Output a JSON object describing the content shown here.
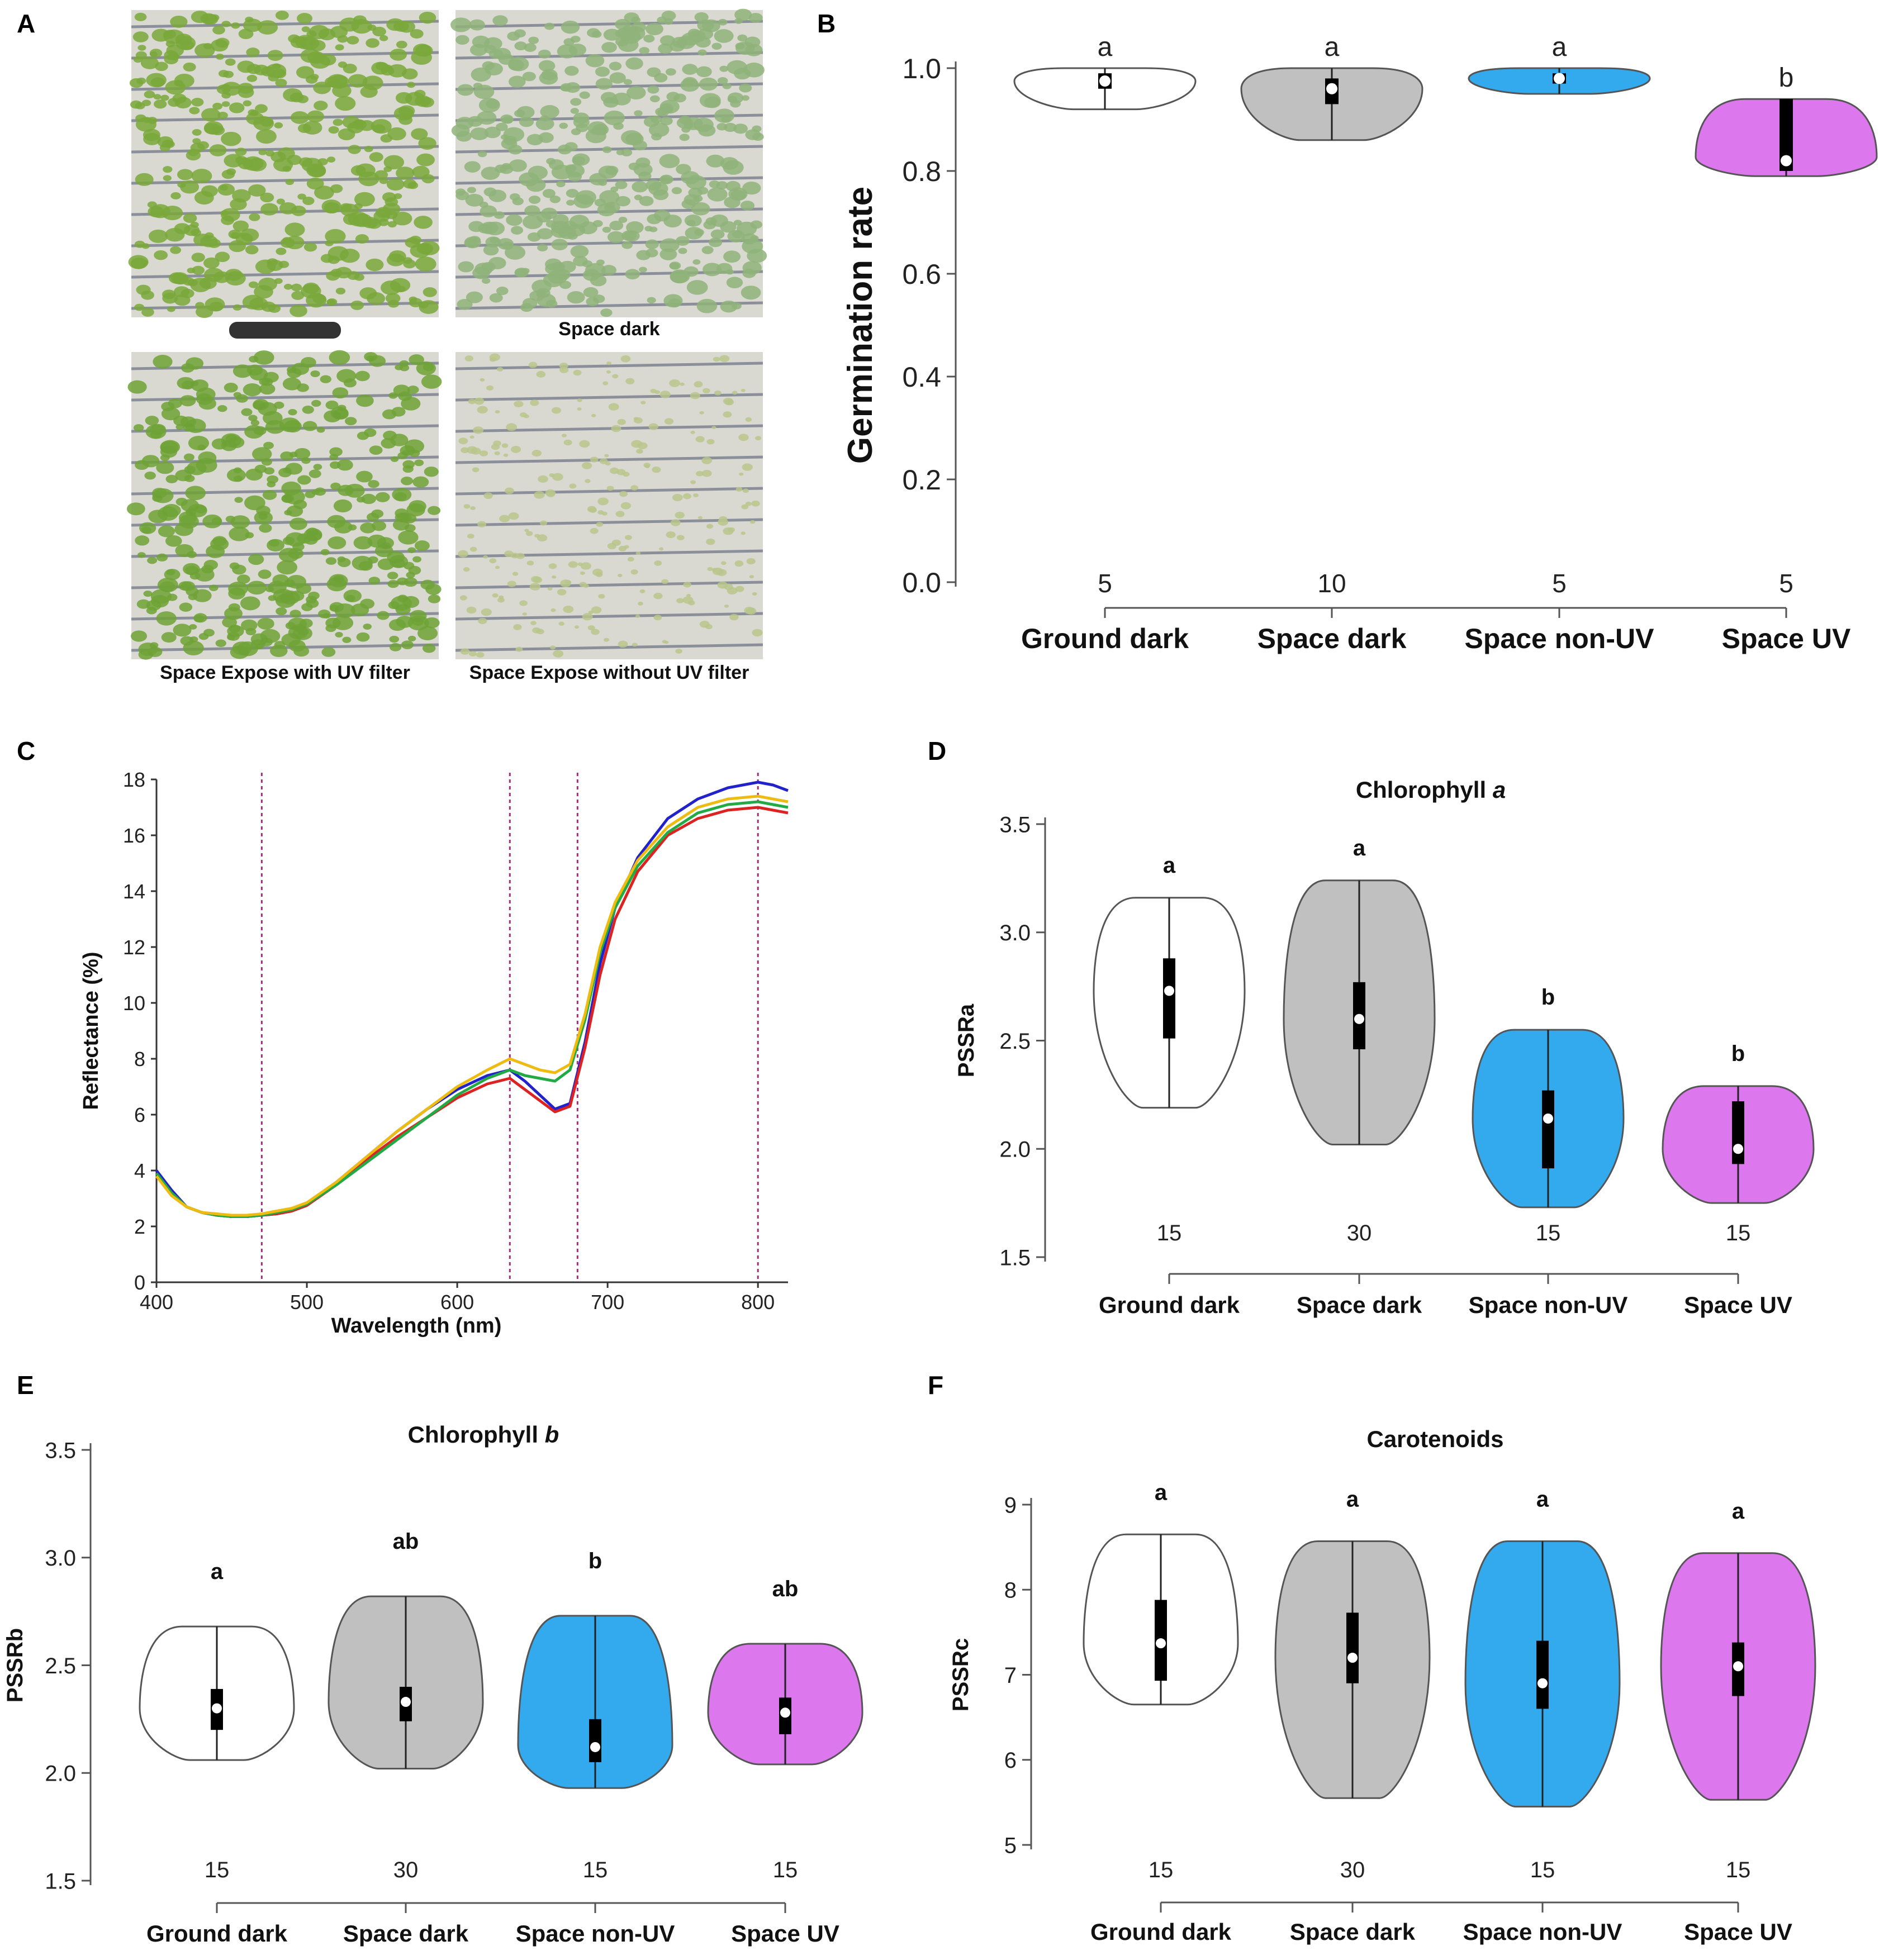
{
  "panels": {
    "a": {
      "label": "A",
      "photos": [
        {
          "caption": "",
          "redacted": true,
          "color": "#7aa83a"
        },
        {
          "caption": "Space dark",
          "color": "#8fb37a"
        },
        {
          "caption": "Space Expose with UV filter",
          "color": "#6fa236"
        },
        {
          "caption": "Space Expose without UV filter",
          "color": "#b9c68c"
        }
      ]
    },
    "b": {
      "label": "B"
    },
    "c": {
      "label": "C"
    },
    "d": {
      "label": "D"
    },
    "e": {
      "label": "E"
    },
    "f": {
      "label": "F"
    }
  },
  "colors": {
    "ground_dark": "#ffffff",
    "space_dark": "#c0c0c0",
    "space_nonuv": "#33aaee",
    "space_uv": "#dd77ee",
    "vline": "#a0307a"
  },
  "chart_data": [
    {
      "panel": "B",
      "type": "violin",
      "title": "",
      "ylabel": "Germination rate",
      "ylim": [
        0,
        1.0
      ],
      "yticks": [
        "0.0",
        "0.2",
        "0.4",
        "0.6",
        "0.8",
        "1.0"
      ],
      "categories": [
        "Ground dark",
        "Space dark",
        "Space non-UV",
        "Space UV"
      ],
      "n": [
        "5",
        "10",
        "5",
        "5"
      ],
      "letters": [
        "a",
        "a",
        "a",
        "b"
      ],
      "groups": [
        {
          "min": 0.92,
          "max": 1.0,
          "q1": 0.96,
          "q3": 0.99,
          "median": 0.975
        },
        {
          "min": 0.86,
          "max": 1.0,
          "q1": 0.93,
          "q3": 0.98,
          "median": 0.96
        },
        {
          "min": 0.95,
          "max": 1.0,
          "q1": 0.97,
          "q3": 0.99,
          "median": 0.98
        },
        {
          "min": 0.79,
          "max": 0.94,
          "q1": 0.8,
          "q3": 0.94,
          "median": 0.82
        }
      ]
    },
    {
      "panel": "C",
      "type": "line",
      "ylabel": "Reflectance (%)",
      "xlabel": "Wavelength (nm)",
      "xlim": [
        400,
        820
      ],
      "ylim": [
        0,
        18
      ],
      "xticks": [
        "400",
        "500",
        "600",
        "700",
        "800"
      ],
      "yticks": [
        "0",
        "2",
        "4",
        "6",
        "8",
        "10",
        "12",
        "14",
        "16",
        "18"
      ],
      "vlines": [
        470,
        635,
        680,
        800
      ],
      "series": [
        {
          "color": "#2222cc",
          "x": [
            400,
            410,
            420,
            430,
            440,
            450,
            460,
            470,
            480,
            490,
            500,
            520,
            540,
            560,
            580,
            600,
            620,
            635,
            645,
            655,
            665,
            675,
            685,
            695,
            705,
            720,
            740,
            760,
            780,
            800,
            810,
            820
          ],
          "y": [
            4.0,
            3.3,
            2.7,
            2.5,
            2.4,
            2.35,
            2.35,
            2.4,
            2.45,
            2.55,
            2.8,
            3.6,
            4.5,
            5.4,
            6.2,
            6.9,
            7.4,
            7.6,
            7.2,
            6.7,
            6.2,
            6.4,
            8.6,
            11.4,
            13.4,
            15.2,
            16.6,
            17.3,
            17.7,
            17.9,
            17.8,
            17.6
          ]
        },
        {
          "color": "#dd2222",
          "x": [
            400,
            410,
            420,
            430,
            440,
            450,
            460,
            470,
            480,
            490,
            500,
            520,
            540,
            560,
            580,
            600,
            620,
            635,
            645,
            655,
            665,
            675,
            685,
            695,
            705,
            720,
            740,
            760,
            780,
            800,
            810,
            820
          ],
          "y": [
            3.9,
            3.2,
            2.7,
            2.5,
            2.4,
            2.35,
            2.35,
            2.4,
            2.45,
            2.55,
            2.75,
            3.5,
            4.4,
            5.2,
            5.9,
            6.6,
            7.1,
            7.3,
            6.9,
            6.5,
            6.1,
            6.3,
            8.4,
            11.0,
            13.0,
            14.7,
            16.0,
            16.6,
            16.9,
            17.0,
            16.9,
            16.8
          ]
        },
        {
          "color": "#22aa44",
          "x": [
            400,
            410,
            420,
            430,
            440,
            450,
            460,
            470,
            480,
            490,
            500,
            520,
            540,
            560,
            580,
            600,
            620,
            635,
            645,
            655,
            665,
            675,
            685,
            695,
            705,
            720,
            740,
            760,
            780,
            800,
            810,
            820
          ],
          "y": [
            3.9,
            3.2,
            2.7,
            2.5,
            2.4,
            2.35,
            2.35,
            2.4,
            2.5,
            2.6,
            2.8,
            3.5,
            4.3,
            5.1,
            5.9,
            6.7,
            7.3,
            7.6,
            7.4,
            7.3,
            7.2,
            7.6,
            9.4,
            11.8,
            13.4,
            14.9,
            16.1,
            16.8,
            17.1,
            17.2,
            17.1,
            17.0
          ]
        },
        {
          "color": "#eebb11",
          "x": [
            400,
            410,
            420,
            430,
            440,
            450,
            460,
            470,
            480,
            490,
            500,
            520,
            540,
            560,
            580,
            600,
            620,
            635,
            645,
            655,
            665,
            675,
            685,
            695,
            705,
            720,
            740,
            760,
            780,
            800,
            810,
            820
          ],
          "y": [
            3.8,
            3.1,
            2.7,
            2.5,
            2.45,
            2.4,
            2.4,
            2.45,
            2.55,
            2.65,
            2.85,
            3.6,
            4.5,
            5.4,
            6.2,
            7.0,
            7.6,
            8.0,
            7.8,
            7.6,
            7.5,
            7.8,
            9.6,
            12.0,
            13.6,
            15.1,
            16.3,
            17.0,
            17.3,
            17.4,
            17.3,
            17.2
          ]
        }
      ]
    },
    {
      "panel": "D",
      "type": "violin",
      "title": "Chlorophyll a",
      "ylabel": "PSSRa",
      "ylim": [
        1.5,
        3.5
      ],
      "yticks": [
        "1.5",
        "2.0",
        "2.5",
        "3.0",
        "3.5"
      ],
      "categories": [
        "Ground dark",
        "Space dark",
        "Space non-UV",
        "Space UV"
      ],
      "n": [
        "15",
        "30",
        "15",
        "15"
      ],
      "letters": [
        "a",
        "a",
        "b",
        "b"
      ],
      "groups": [
        {
          "min": 2.19,
          "max": 3.16,
          "q1": 2.51,
          "q3": 2.88,
          "median": 2.73
        },
        {
          "min": 2.02,
          "max": 3.24,
          "q1": 2.46,
          "q3": 2.77,
          "median": 2.6
        },
        {
          "min": 1.73,
          "max": 2.55,
          "q1": 1.91,
          "q3": 2.27,
          "median": 2.14
        },
        {
          "min": 1.75,
          "max": 2.29,
          "q1": 1.93,
          "q3": 2.22,
          "median": 2.0
        }
      ]
    },
    {
      "panel": "E",
      "type": "violin",
      "title": "Chlorophyll b",
      "ylabel": "PSSRb",
      "ylim": [
        1.5,
        3.5
      ],
      "yticks": [
        "1.5",
        "2.0",
        "2.5",
        "3.0",
        "3.5"
      ],
      "categories": [
        "Ground dark",
        "Space dark",
        "Space non-UV",
        "Space UV"
      ],
      "n": [
        "15",
        "30",
        "15",
        "15"
      ],
      "letters": [
        "a",
        "ab",
        "b",
        "ab"
      ],
      "groups": [
        {
          "min": 2.06,
          "max": 2.68,
          "q1": 2.2,
          "q3": 2.39,
          "median": 2.3
        },
        {
          "min": 2.02,
          "max": 2.82,
          "q1": 2.24,
          "q3": 2.4,
          "median": 2.33
        },
        {
          "min": 1.93,
          "max": 2.73,
          "q1": 2.05,
          "q3": 2.25,
          "median": 2.12
        },
        {
          "min": 2.04,
          "max": 2.6,
          "q1": 2.18,
          "q3": 2.35,
          "median": 2.28
        }
      ]
    },
    {
      "panel": "F",
      "type": "violin",
      "title": "Carotenoids",
      "ylabel": "PSSRc",
      "ylim": [
        5,
        9
      ],
      "yticks": [
        "5",
        "6",
        "7",
        "8",
        "9"
      ],
      "categories": [
        "Ground dark",
        "Space dark",
        "Space non-UV",
        "Space UV"
      ],
      "n": [
        "15",
        "30",
        "15",
        "15"
      ],
      "letters": [
        "a",
        "a",
        "a",
        "a"
      ],
      "groups": [
        {
          "min": 6.65,
          "max": 8.65,
          "q1": 6.93,
          "q3": 7.88,
          "median": 7.37
        },
        {
          "min": 5.55,
          "max": 8.57,
          "q1": 6.9,
          "q3": 7.73,
          "median": 7.2
        },
        {
          "min": 5.45,
          "max": 8.57,
          "q1": 6.6,
          "q3": 7.4,
          "median": 6.9
        },
        {
          "min": 5.53,
          "max": 8.43,
          "q1": 6.75,
          "q3": 7.38,
          "median": 7.1
        }
      ]
    }
  ]
}
